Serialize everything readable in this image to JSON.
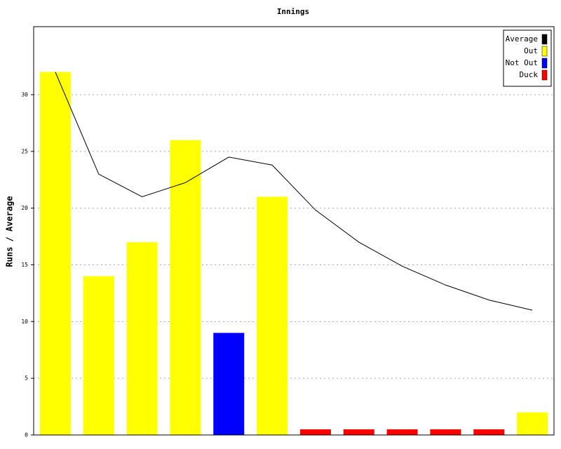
{
  "chart_data": {
    "type": "bar",
    "title": "Innings",
    "y_label": "Runs / Average",
    "categories": [
      null,
      null,
      null,
      null,
      null,
      null,
      null,
      null,
      null,
      null,
      null,
      null
    ],
    "series": [
      {
        "name": "Average",
        "color": "#000000",
        "type": "line",
        "values": [
          32,
          23,
          21,
          22.25,
          24.5,
          23.8,
          19.83,
          17,
          14.88,
          13.22,
          11.9,
          11
        ]
      },
      {
        "name": "Out",
        "color": "#ffff00",
        "type": "bar",
        "values": [
          32,
          14,
          17,
          26,
          null,
          21,
          null,
          null,
          null,
          null,
          null,
          2
        ]
      },
      {
        "name": "Not Out",
        "color": "#0000ff",
        "type": "bar",
        "values": [
          null,
          null,
          null,
          null,
          9,
          null,
          null,
          null,
          null,
          null,
          null,
          null
        ]
      },
      {
        "name": "Duck",
        "color": "#ff0000",
        "type": "bar",
        "values": [
          null,
          null,
          null,
          null,
          null,
          null,
          0.5,
          0.5,
          0.5,
          0.5,
          0.5,
          null
        ]
      }
    ],
    "ylim": [
      0,
      36
    ],
    "yticks": [
      0,
      5,
      10,
      15,
      20,
      25,
      30
    ],
    "grid": true,
    "legend": "top-right"
  }
}
